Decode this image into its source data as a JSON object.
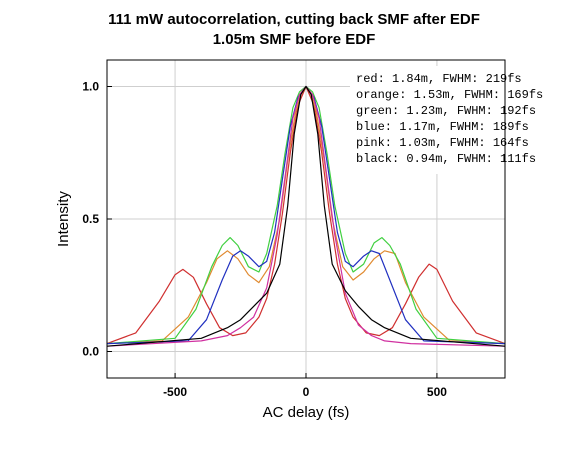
{
  "chart_data": {
    "type": "line",
    "title": "111 mW autocorrelation, cutting back SMF after EDF",
    "subtitle": "1.05m SMF before EDF",
    "xlabel": "AC delay (fs)",
    "ylabel": "Intensity",
    "xlim": [
      -760,
      760
    ],
    "ylim": [
      -0.1,
      1.1
    ],
    "xticks": [
      -500,
      0,
      500
    ],
    "xtick_labels": [
      "-500",
      "0",
      "500"
    ],
    "yticks": [
      0.0,
      0.5,
      1.0
    ],
    "ytick_labels": [
      "0.0",
      "0.5",
      "1.0"
    ],
    "grid": true,
    "legend_position": "top-right",
    "series": [
      {
        "name": "red",
        "label": "red:    1.84m, FWHM: 219fs",
        "color": "#d03030",
        "x": [
          -760,
          -650,
          -560,
          -500,
          -470,
          -430,
          -380,
          -330,
          -280,
          -230,
          -180,
          -150,
          -120,
          -90,
          -60,
          -30,
          0,
          30,
          60,
          90,
          120,
          150,
          180,
          230,
          280,
          330,
          380,
          430,
          470,
          500,
          560,
          650,
          760
        ],
        "y": [
          0.03,
          0.07,
          0.19,
          0.29,
          0.31,
          0.28,
          0.18,
          0.09,
          0.06,
          0.07,
          0.13,
          0.2,
          0.33,
          0.52,
          0.75,
          0.93,
          1.0,
          0.93,
          0.75,
          0.52,
          0.33,
          0.2,
          0.13,
          0.07,
          0.06,
          0.09,
          0.18,
          0.28,
          0.33,
          0.31,
          0.19,
          0.07,
          0.03
        ]
      },
      {
        "name": "orange",
        "label": "orange: 1.53m, FWHM: 169fs",
        "color": "#e08a30",
        "x": [
          -760,
          -550,
          -450,
          -380,
          -340,
          -300,
          -260,
          -220,
          -180,
          -140,
          -100,
          -70,
          -40,
          -20,
          0,
          20,
          40,
          70,
          100,
          140,
          180,
          220,
          260,
          300,
          340,
          380,
          450,
          550,
          760
        ],
        "y": [
          0.03,
          0.04,
          0.13,
          0.26,
          0.35,
          0.38,
          0.35,
          0.29,
          0.26,
          0.32,
          0.5,
          0.72,
          0.9,
          0.97,
          1.0,
          0.97,
          0.9,
          0.72,
          0.5,
          0.32,
          0.27,
          0.3,
          0.35,
          0.38,
          0.37,
          0.26,
          0.13,
          0.04,
          0.03
        ]
      },
      {
        "name": "green",
        "label": "green:  1.23m, FWHM: 192fs",
        "color": "#40d040",
        "x": [
          -760,
          -500,
          -420,
          -360,
          -320,
          -290,
          -260,
          -220,
          -180,
          -150,
          -110,
          -80,
          -50,
          -25,
          0,
          25,
          50,
          80,
          110,
          150,
          180,
          220,
          260,
          290,
          320,
          360,
          420,
          500,
          760
        ],
        "y": [
          0.03,
          0.05,
          0.16,
          0.32,
          0.4,
          0.43,
          0.4,
          0.32,
          0.3,
          0.37,
          0.55,
          0.75,
          0.92,
          0.98,
          1.0,
          0.98,
          0.92,
          0.75,
          0.55,
          0.37,
          0.3,
          0.33,
          0.41,
          0.43,
          0.4,
          0.33,
          0.16,
          0.05,
          0.03
        ]
      },
      {
        "name": "blue",
        "label": "blue:    1.17m, FWHM: 189fs",
        "color": "#2030c0",
        "x": [
          -760,
          -450,
          -380,
          -320,
          -280,
          -250,
          -220,
          -180,
          -150,
          -120,
          -90,
          -60,
          -30,
          0,
          30,
          60,
          90,
          120,
          150,
          180,
          220,
          250,
          280,
          320,
          380,
          450,
          760
        ],
        "y": [
          0.03,
          0.04,
          0.12,
          0.27,
          0.36,
          0.38,
          0.36,
          0.32,
          0.34,
          0.45,
          0.65,
          0.85,
          0.96,
          1.0,
          0.96,
          0.85,
          0.65,
          0.45,
          0.34,
          0.32,
          0.36,
          0.38,
          0.37,
          0.27,
          0.12,
          0.04,
          0.03
        ]
      },
      {
        "name": "pink",
        "label": "pink:    1.03m, FWHM: 164fs",
        "color": "#d030a0",
        "x": [
          -760,
          -400,
          -300,
          -250,
          -200,
          -150,
          -110,
          -80,
          -50,
          -25,
          0,
          25,
          50,
          80,
          110,
          150,
          200,
          250,
          300,
          400,
          760
        ],
        "y": [
          0.02,
          0.04,
          0.06,
          0.09,
          0.13,
          0.24,
          0.44,
          0.66,
          0.88,
          0.97,
          1.0,
          0.97,
          0.88,
          0.66,
          0.44,
          0.22,
          0.1,
          0.06,
          0.04,
          0.03,
          0.02
        ]
      },
      {
        "name": "black",
        "label": "black:  0.94m, FWHM: 111fs",
        "color": "#000000",
        "x": [
          -760,
          -400,
          -300,
          -250,
          -200,
          -150,
          -100,
          -70,
          -45,
          -20,
          0,
          20,
          45,
          70,
          100,
          150,
          200,
          250,
          300,
          400,
          760
        ],
        "y": [
          0.02,
          0.05,
          0.09,
          0.12,
          0.17,
          0.22,
          0.33,
          0.55,
          0.82,
          0.97,
          1.0,
          0.97,
          0.82,
          0.55,
          0.33,
          0.23,
          0.17,
          0.12,
          0.09,
          0.05,
          0.02
        ]
      }
    ]
  }
}
